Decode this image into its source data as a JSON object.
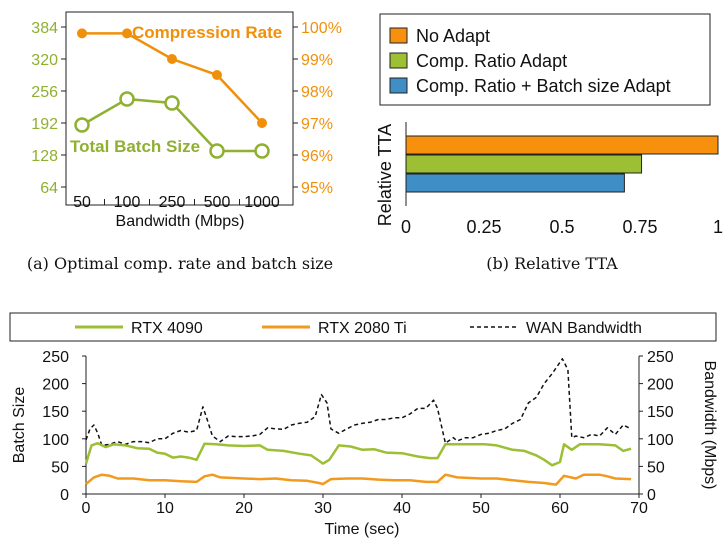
{
  "chart_data": [
    {
      "type": "line",
      "caption": "(a)  Optimal comp. rate and batch size",
      "xlabel": "Bandwidth (Mbps)",
      "categories": [
        "50",
        "100",
        "250",
        "500",
        "1000"
      ],
      "y_left": {
        "ticks": [
          "384",
          "320",
          "256",
          "192",
          "128",
          "64"
        ],
        "ylim": [
          64,
          384
        ]
      },
      "y_right": {
        "ticks": [
          "100%",
          "99%",
          "98%",
          "97%",
          "96%",
          "95%"
        ],
        "ylim": [
          95,
          100
        ]
      },
      "series": [
        {
          "name": "Compression Rate",
          "axis": "right",
          "color": "#f0900a",
          "values": [
            99.8,
            99.8,
            99.0,
            98.5,
            97.0
          ]
        },
        {
          "name": "Total Batch Size",
          "axis": "left",
          "color": "#8fb030",
          "values": [
            188,
            240,
            232,
            136,
            136
          ]
        }
      ]
    },
    {
      "type": "bar",
      "orientation": "horizontal",
      "caption": "(b)  Relative TTA",
      "xlabel": "Relative TTA",
      "xlim": [
        0,
        1
      ],
      "ticks": [
        "0",
        "0.25",
        "0.5",
        "0.75",
        "1"
      ],
      "legend_position": "top",
      "series": [
        {
          "name": "No Adapt",
          "value": 1.0,
          "color": "#f7900d"
        },
        {
          "name": "Comp. Ratio Adapt",
          "value": 0.755,
          "color": "#9cbf34"
        },
        {
          "name": "Comp. Ratio + Batch size Adapt",
          "value": 0.7,
          "color": "#3f8fc6"
        }
      ]
    },
    {
      "type": "line",
      "xlabel": "Time (sec)",
      "ylabel_left": "Batch Size",
      "ylabel_right": "Bandwidth (Mbps)",
      "xlim": [
        0,
        70
      ],
      "ylim": [
        0,
        250
      ],
      "x_ticks": [
        "0",
        "10",
        "20",
        "30",
        "40",
        "50",
        "60",
        "70"
      ],
      "y_ticks": [
        "250",
        "200",
        "150",
        "100",
        "50",
        "0"
      ],
      "legend_position": "top",
      "series": [
        {
          "name": "RTX 4090",
          "color": "#9cbf34",
          "style": "solid",
          "points": [
            [
              0,
              55
            ],
            [
              0.7,
              88
            ],
            [
              1.5,
              92
            ],
            [
              2.5,
              85
            ],
            [
              3.5,
              90
            ],
            [
              5,
              88
            ],
            [
              6.5,
              83
            ],
            [
              8,
              82
            ],
            [
              9,
              75
            ],
            [
              10,
              73
            ],
            [
              11,
              66
            ],
            [
              12,
              68
            ],
            [
              13,
              66
            ],
            [
              14,
              62
            ],
            [
              15,
              91
            ],
            [
              16.5,
              90
            ],
            [
              18,
              88
            ],
            [
              20,
              87
            ],
            [
              22,
              88
            ],
            [
              23,
              80
            ],
            [
              25,
              78
            ],
            [
              27,
              73
            ],
            [
              28.5,
              70
            ],
            [
              29.5,
              60
            ],
            [
              30,
              55
            ],
            [
              30.8,
              62
            ],
            [
              32,
              88
            ],
            [
              33.5,
              86
            ],
            [
              35,
              80
            ],
            [
              36.5,
              81
            ],
            [
              38,
              75
            ],
            [
              40,
              74
            ],
            [
              42,
              68
            ],
            [
              43.5,
              65
            ],
            [
              44.5,
              65
            ],
            [
              45.5,
              90
            ],
            [
              47,
              90
            ],
            [
              49,
              90
            ],
            [
              50.5,
              90
            ],
            [
              52,
              88
            ],
            [
              54,
              80
            ],
            [
              55.5,
              78
            ],
            [
              57,
              70
            ],
            [
              58,
              62
            ],
            [
              59,
              52
            ],
            [
              60,
              58
            ],
            [
              60.5,
              90
            ],
            [
              61.5,
              80
            ],
            [
              62.5,
              90
            ],
            [
              65,
              90
            ],
            [
              67,
              88
            ],
            [
              68,
              78
            ],
            [
              69,
              82
            ]
          ]
        },
        {
          "name": "RTX 2080 Ti",
          "color": "#f29a1f",
          "style": "solid",
          "points": [
            [
              0,
              18
            ],
            [
              1,
              30
            ],
            [
              2,
              35
            ],
            [
              3,
              33
            ],
            [
              4,
              28
            ],
            [
              6,
              28
            ],
            [
              8,
              25
            ],
            [
              10,
              25
            ],
            [
              12,
              23
            ],
            [
              14,
              22
            ],
            [
              15,
              32
            ],
            [
              16,
              35
            ],
            [
              17,
              30
            ],
            [
              20,
              28
            ],
            [
              22,
              27
            ],
            [
              24,
              28
            ],
            [
              26,
              25
            ],
            [
              28,
              24
            ],
            [
              29.5,
              20
            ],
            [
              30,
              18
            ],
            [
              31,
              27
            ],
            [
              33,
              28
            ],
            [
              35,
              28
            ],
            [
              37,
              26
            ],
            [
              39,
              25
            ],
            [
              41,
              25
            ],
            [
              43,
              22
            ],
            [
              44.5,
              22
            ],
            [
              45.5,
              35
            ],
            [
              47,
              30
            ],
            [
              50,
              28
            ],
            [
              52,
              28
            ],
            [
              54,
              25
            ],
            [
              56,
              22
            ],
            [
              58,
              20
            ],
            [
              59.5,
              17
            ],
            [
              60.5,
              33
            ],
            [
              62,
              28
            ],
            [
              63,
              35
            ],
            [
              65,
              35
            ],
            [
              66,
              32
            ],
            [
              67,
              28
            ],
            [
              69,
              27
            ]
          ]
        },
        {
          "name": "WAN Bandwidth",
          "color": "#111111",
          "style": "dashed",
          "points": [
            [
              0,
              98
            ],
            [
              0.5,
              118
            ],
            [
              1,
              125
            ],
            [
              1.5,
              110
            ],
            [
              2,
              88
            ],
            [
              3,
              90
            ],
            [
              4,
              95
            ],
            [
              5,
              90
            ],
            [
              6,
              95
            ],
            [
              7,
              95
            ],
            [
              8,
              93
            ],
            [
              9,
              100
            ],
            [
              10,
              100
            ],
            [
              11,
              110
            ],
            [
              12,
              115
            ],
            [
              13,
              112
            ],
            [
              14,
              115
            ],
            [
              14.8,
              158
            ],
            [
              15.5,
              128
            ],
            [
              16,
              105
            ],
            [
              17,
              95
            ],
            [
              18,
              105
            ],
            [
              19,
              104
            ],
            [
              20,
              104
            ],
            [
              21,
              105
            ],
            [
              22,
              108
            ],
            [
              23,
              120
            ],
            [
              24,
              118
            ],
            [
              25,
              117
            ],
            [
              26,
              125
            ],
            [
              27,
              128
            ],
            [
              28,
              130
            ],
            [
              29,
              140
            ],
            [
              29.8,
              180
            ],
            [
              30.5,
              165
            ],
            [
              31,
              118
            ],
            [
              32,
              110
            ],
            [
              33,
              118
            ],
            [
              34,
              125
            ],
            [
              35,
              128
            ],
            [
              36,
              130
            ],
            [
              37,
              135
            ],
            [
              38,
              135
            ],
            [
              39,
              138
            ],
            [
              40,
              138
            ],
            [
              41,
              145
            ],
            [
              42,
              155
            ],
            [
              43,
              155
            ],
            [
              44,
              170
            ],
            [
              44.5,
              155
            ],
            [
              45.5,
              92
            ],
            [
              46.5,
              102
            ],
            [
              47,
              96
            ],
            [
              48,
              102
            ],
            [
              49,
              102
            ],
            [
              50,
              108
            ],
            [
              51,
              110
            ],
            [
              52,
              115
            ],
            [
              53,
              118
            ],
            [
              54,
              128
            ],
            [
              55,
              135
            ],
            [
              56,
              165
            ],
            [
              57,
              175
            ],
            [
              58,
              200
            ],
            [
              59,
              218
            ],
            [
              60.3,
              245
            ],
            [
              61,
              225
            ],
            [
              61.5,
              102
            ],
            [
              62,
              105
            ],
            [
              63,
              102
            ],
            [
              64,
              108
            ],
            [
              65,
              105
            ],
            [
              66,
              120
            ],
            [
              67,
              108
            ],
            [
              68,
              125
            ],
            [
              69,
              118
            ]
          ]
        }
      ]
    }
  ]
}
